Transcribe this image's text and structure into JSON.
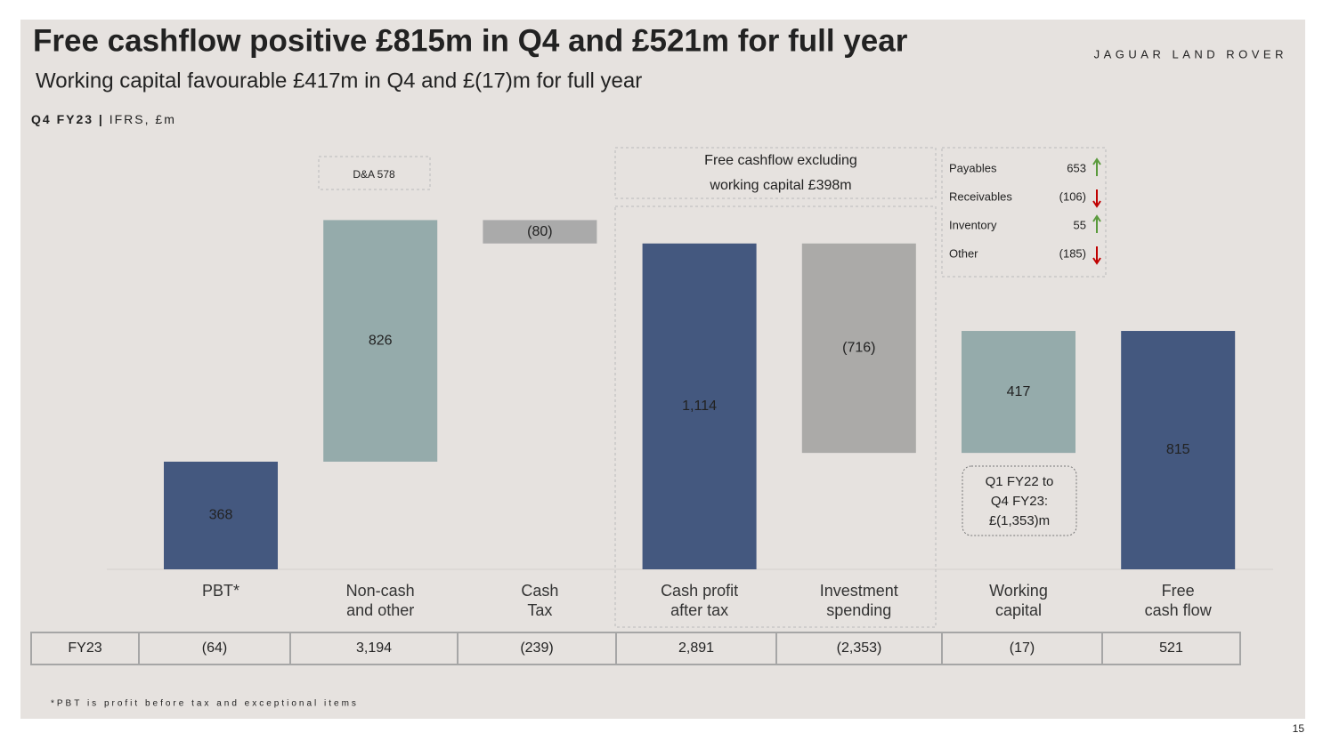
{
  "title": "Free cashflow positive £815m in Q4 and £521m for full year",
  "subtitle": "Working capital favourable £417m in Q4 and £(17)m for full year",
  "brand": "JAGUAR LAND ROVER",
  "section": {
    "period": "Q4 FY23",
    "separator": "|",
    "basis": "IFRS, £m"
  },
  "chart_data": {
    "type": "waterfall",
    "categories": [
      "PBT*",
      "Non-cash\nand other",
      "Cash\nTax",
      "Cash profit\nafter tax",
      "Investment\nspending",
      "Working\ncapital",
      "Free\ncash flow"
    ],
    "values": [
      368,
      826,
      -80,
      1114,
      -716,
      417,
      815
    ],
    "value_labels": [
      "368",
      "826",
      "(80)",
      "1,114",
      "(716)",
      "417",
      "815"
    ],
    "measure": [
      "relative",
      "relative",
      "relative",
      "total",
      "relative",
      "relative",
      "total"
    ],
    "colors": [
      "#44587f",
      "#95abab",
      "#aaaaaa",
      "#44587f",
      "#abaaa8",
      "#95abab",
      "#44587f"
    ]
  },
  "annotations": {
    "da": "D&A 578",
    "fcf_excl_wc": [
      "Free cashflow excluding",
      "working capital £398m"
    ],
    "wc_note": [
      "Q1 FY22 to",
      "Q4 FY23:",
      "£(1,353)m"
    ]
  },
  "working_capital_breakdown": [
    {
      "name": "Payables",
      "value": "653",
      "direction": "up"
    },
    {
      "name": "Receivables",
      "value": "(106)",
      "direction": "down"
    },
    {
      "name": "Inventory",
      "value": "55",
      "direction": "up"
    },
    {
      "name": "Other",
      "value": "(185)",
      "direction": "down"
    }
  ],
  "fy23_row": {
    "label": "FY23",
    "values": [
      "(64)",
      "3,194",
      "(239)",
      "2,891",
      "(2,353)",
      "(17)",
      "521"
    ]
  },
  "footnote": "*PBT is profit before tax and exceptional items",
  "page_number": "15"
}
